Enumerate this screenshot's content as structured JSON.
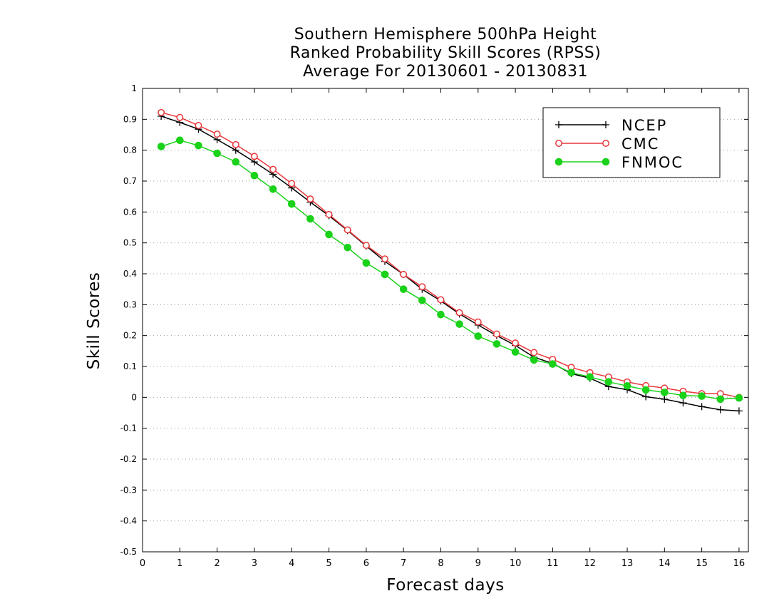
{
  "chart_data": {
    "type": "line",
    "title": [
      "Southern Hemisphere 500hPa Height",
      "Ranked Probability Skill Scores (RPSS)",
      "Average For 20130601 - 20130831"
    ],
    "xlabel": "Forecast days",
    "ylabel": "Skill Scores",
    "xlim": [
      0,
      16.25
    ],
    "ylim": [
      -0.5,
      1
    ],
    "xticks": [
      0,
      1,
      2,
      3,
      4,
      5,
      6,
      7,
      8,
      9,
      10,
      11,
      12,
      13,
      14,
      15,
      16
    ],
    "yticks": [
      -0.5,
      -0.4,
      -0.3,
      -0.2,
      -0.1,
      0,
      0.1,
      0.2,
      0.3,
      0.4,
      0.5,
      0.6,
      0.7,
      0.8,
      0.9,
      1
    ],
    "ytick_labels": [
      "-0.5",
      "-0.4",
      "-0.3",
      "-0.2",
      "-0.1",
      "0",
      "0.1",
      "0.2",
      "0.3",
      "0.4",
      "0.5",
      "0.6",
      "0.7",
      "0.8",
      "0.9",
      "1"
    ],
    "grid": "horizontal dotted",
    "legend_position": "top-right",
    "x": [
      0.5,
      1,
      1.5,
      2,
      2.5,
      3,
      3.5,
      4,
      4.5,
      5,
      5.5,
      6,
      6.5,
      7,
      7.5,
      8,
      8.5,
      9,
      9.5,
      10,
      10.5,
      11,
      11.5,
      12,
      12.5,
      13,
      13.5,
      14,
      14.5,
      15,
      15.5,
      16
    ],
    "series": [
      {
        "name": "NCEP",
        "color": "#000000",
        "marker": "plus",
        "values": [
          0.91,
          0.89,
          0.868,
          0.834,
          0.8,
          0.762,
          0.722,
          0.678,
          0.632,
          0.588,
          0.54,
          0.49,
          0.44,
          0.398,
          0.35,
          0.312,
          0.27,
          0.234,
          0.2,
          0.168,
          0.13,
          0.11,
          0.077,
          0.062,
          0.035,
          0.025,
          0.002,
          -0.006,
          -0.018,
          -0.03,
          -0.04,
          -0.044
        ]
      },
      {
        "name": "CMC",
        "color": "#e8373a",
        "marker": "open-circle",
        "values": [
          0.922,
          0.906,
          0.88,
          0.852,
          0.818,
          0.78,
          0.738,
          0.692,
          0.642,
          0.592,
          0.542,
          0.492,
          0.448,
          0.398,
          0.358,
          0.316,
          0.274,
          0.244,
          0.205,
          0.176,
          0.145,
          0.123,
          0.097,
          0.08,
          0.066,
          0.05,
          0.038,
          0.03,
          0.02,
          0.012,
          0.012,
          0.0
        ]
      },
      {
        "name": "FNMOC",
        "color": "#19d219",
        "marker": "filled-circle",
        "values": [
          0.812,
          0.832,
          0.815,
          0.79,
          0.762,
          0.718,
          0.674,
          0.626,
          0.578,
          0.527,
          0.485,
          0.435,
          0.398,
          0.35,
          0.314,
          0.268,
          0.237,
          0.198,
          0.173,
          0.147,
          0.121,
          0.108,
          0.08,
          0.066,
          0.05,
          0.037,
          0.024,
          0.016,
          0.006,
          0.004,
          -0.006,
          -0.002
        ]
      }
    ]
  }
}
